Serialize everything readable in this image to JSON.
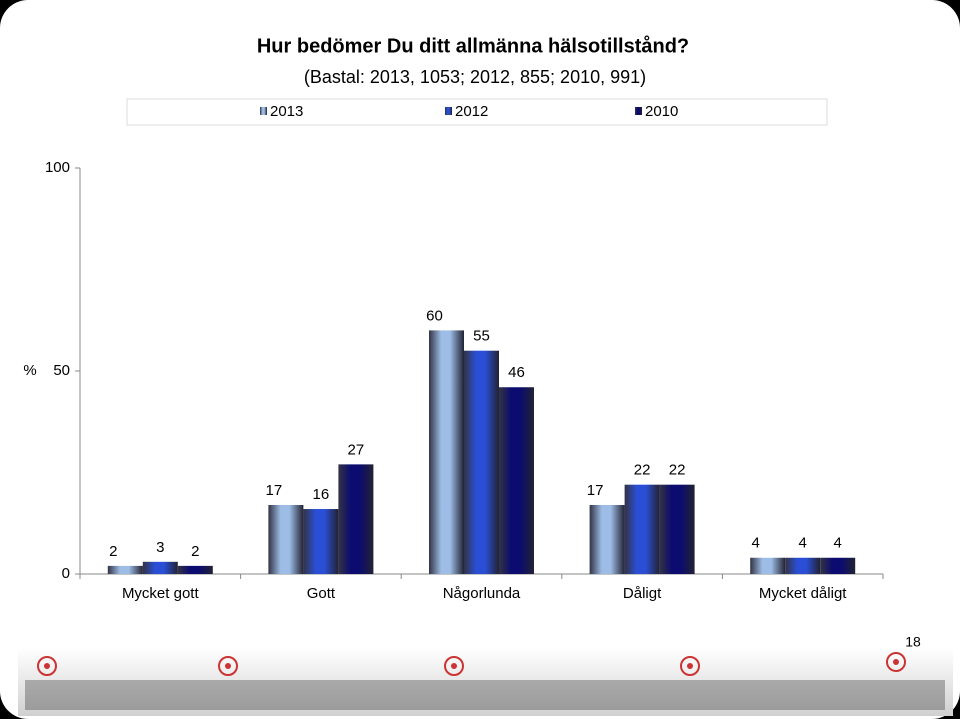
{
  "chart_data": {
    "type": "bar",
    "title": "Hur bedömer Du ditt allmänna hälsotillstånd?",
    "subtitle": "(Bastal: 2013, 1053; 2012, 855; 2010, 991)",
    "y_label": "%",
    "categories": [
      "Mycket gott",
      "Gott",
      "Någorlunda",
      "Dåligt",
      "Mycket dåligt"
    ],
    "series": [
      {
        "name": "2013",
        "color": "#9dbde6",
        "values": [
          2,
          17,
          60,
          17,
          4
        ]
      },
      {
        "name": "2012",
        "color": "#2a4fd6",
        "values": [
          3,
          16,
          55,
          22,
          4
        ]
      },
      {
        "name": "2010",
        "color": "#0b0b70",
        "values": [
          2,
          27,
          46,
          22,
          4
        ]
      }
    ],
    "ylim": [
      0,
      100
    ],
    "yticks": [
      0,
      50,
      100
    ],
    "grid": false,
    "legend": "top"
  },
  "page_number": "18"
}
